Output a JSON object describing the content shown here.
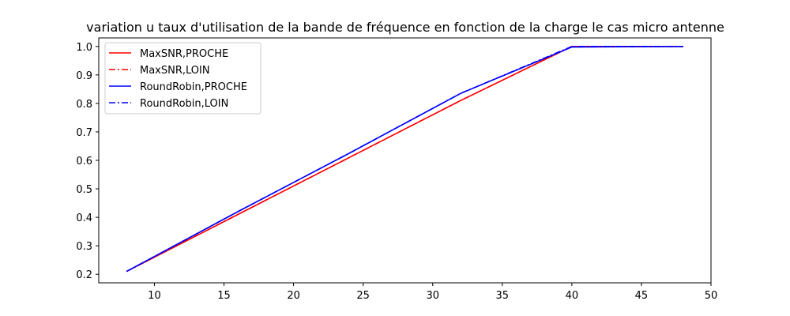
{
  "chart_data": {
    "type": "line",
    "title": "variation u taux d'utilisation de la bande de fréquence en fonction de la charge le cas micro antenne",
    "xlabel": "",
    "ylabel": "",
    "xlim": [
      6,
      50
    ],
    "ylim": [
      0.17,
      1.03
    ],
    "xticks": [
      10,
      15,
      20,
      25,
      30,
      35,
      40,
      45,
      50
    ],
    "yticks": [
      0.2,
      0.3,
      0.4,
      0.5,
      0.6,
      0.7,
      0.8,
      0.9,
      1.0
    ],
    "xtick_labels": [
      "10",
      "15",
      "20",
      "25",
      "30",
      "35",
      "40",
      "45",
      "50"
    ],
    "ytick_labels": [
      "0.2",
      "0.3",
      "0.4",
      "0.5",
      "0.6",
      "0.7",
      "0.8",
      "0.9",
      "1.0"
    ],
    "grid": false,
    "legend_position": "top-left",
    "series": [
      {
        "name": "MaxSNR,PROCHE",
        "color": "#ff0000",
        "dash": "solid",
        "x": [
          8,
          16,
          24,
          32,
          40,
          48
        ],
        "y": [
          0.21,
          0.41,
          0.61,
          0.81,
          1.0,
          1.0
        ]
      },
      {
        "name": "MaxSNR,LOIN",
        "color": "#ff0000",
        "dash": "dashdot",
        "x": [
          8,
          16,
          24,
          32,
          40,
          48
        ],
        "y": [
          0.21,
          0.41,
          0.61,
          0.81,
          1.0,
          1.0
        ]
      },
      {
        "name": "RoundRobin,PROCHE",
        "color": "#0000ff",
        "dash": "solid",
        "x": [
          8,
          16,
          24,
          32,
          40,
          48
        ],
        "y": [
          0.21,
          0.42,
          0.625,
          0.835,
          0.998,
          1.0
        ]
      },
      {
        "name": "RoundRobin,LOIN",
        "color": "#0000ff",
        "dash": "dashdot",
        "x": [
          8,
          16,
          24,
          32,
          40,
          48
        ],
        "y": [
          0.21,
          0.42,
          0.625,
          0.835,
          1.0,
          1.0
        ]
      }
    ]
  }
}
